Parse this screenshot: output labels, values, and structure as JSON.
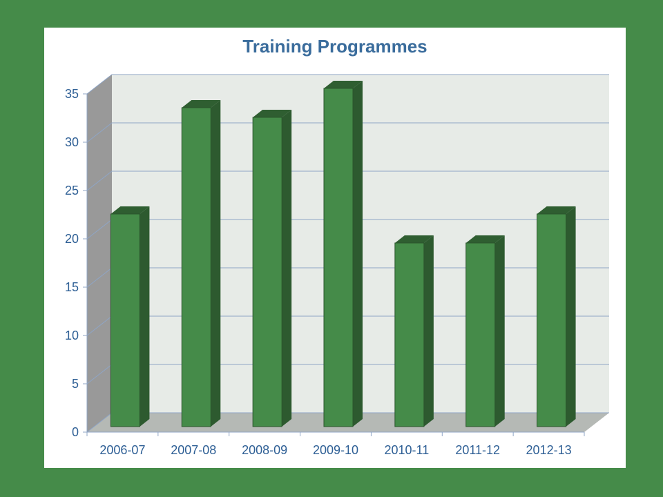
{
  "chart_data": {
    "type": "bar",
    "title": "Training Programmes",
    "xlabel": "",
    "ylabel": "",
    "categories": [
      "2006-07",
      "2007-08",
      "2008-09",
      "2009-10",
      "2010-11",
      "2011-12",
      "2012-13"
    ],
    "values": [
      22,
      33,
      32,
      35,
      19,
      19,
      22
    ],
    "ylim": [
      0,
      35
    ],
    "yticks": [
      0,
      5,
      10,
      15,
      20,
      25,
      30,
      35
    ],
    "grid": true,
    "legend": "none",
    "three_d": true,
    "colors": {
      "bar_front": "#458b49",
      "bar_side": "#2d5a2f",
      "bar_top": "#2f5e31",
      "back_wall": "#e7ebe7",
      "side_wall": "#999999",
      "floor": "#b5b9b5",
      "grid": "#8fa5c6",
      "text": "#2e5f95"
    }
  }
}
